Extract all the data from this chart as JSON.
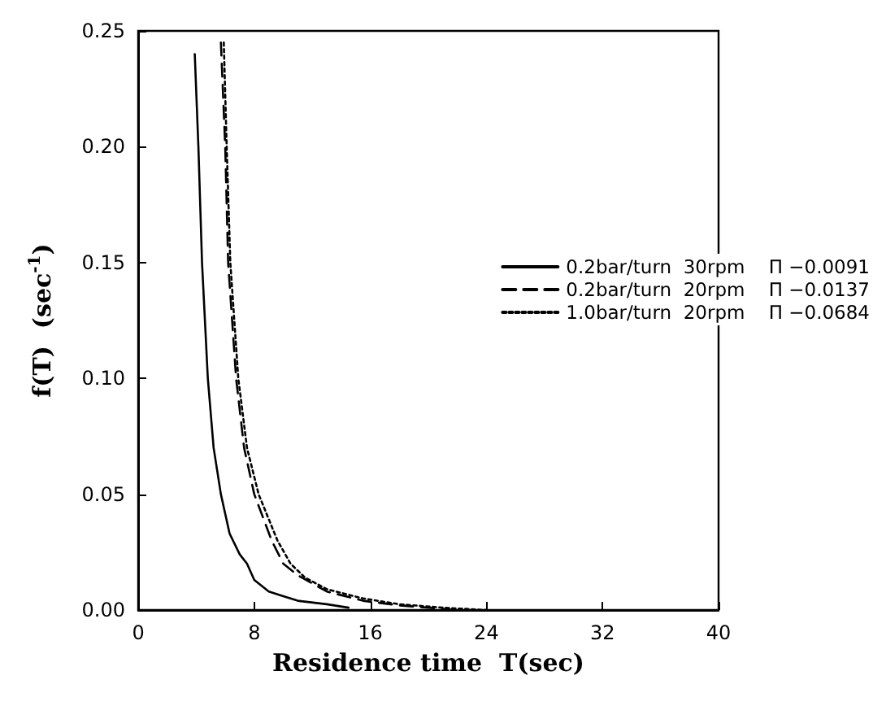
{
  "chart_data": {
    "type": "line",
    "xlabel": "Residence time  T(sec)",
    "ylabel": "f(T)  (sec$^{-1}$)",
    "xlim": [
      0,
      40
    ],
    "xticks": [
      0,
      8,
      16,
      24,
      32,
      40
    ],
    "ylim": [
      0,
      0.25
    ],
    "yticks": [
      {
        "value": 0,
        "label": "0.00"
      },
      0.05,
      {
        "value": 0.1,
        "label": "0.10"
      },
      0.15,
      {
        "value": 0.2,
        "label": "0.20"
      },
      0.25
    ],
    "grid": false,
    "legend": "right",
    "marker": "none",
    "series": [
      {
        "name": "0.2bar/turn  30rpm    Π −0.0091",
        "color": "#000000",
        "line_style": "solid",
        "x": [
          3.9,
          4.15,
          4.4,
          4.8,
          5.2,
          5.7,
          6.3,
          7.0,
          7.5,
          8.0,
          9.0,
          10.0,
          11.0,
          13.0,
          14.5
        ],
        "values": [
          0.24,
          0.2,
          0.15,
          0.1,
          0.07,
          0.05,
          0.033,
          0.024,
          0.02,
          0.013,
          0.008,
          0.006,
          0.004,
          0.0025,
          0.001
        ]
      },
      {
        "name": "0.2bar/turn  20rpm    Π −0.0137",
        "color": "#000000",
        "line_style": "dashed",
        "x": [
          5.7,
          6.0,
          6.2,
          6.75,
          7.3,
          8.0,
          9.2,
          10.0,
          11.0,
          13.0,
          15.5,
          18.0,
          20.0,
          22.0
        ],
        "values": [
          0.245,
          0.2,
          0.15,
          0.1,
          0.07,
          0.05,
          0.03,
          0.02,
          0.015,
          0.008,
          0.004,
          0.002,
          0.001,
          0.0
        ]
      },
      {
        "name": "1.0bar/turn  20rpm    Π −0.0684",
        "color": "#000000",
        "line_style": "dotted",
        "x": [
          5.9,
          6.1,
          6.35,
          6.9,
          7.5,
          8.3,
          9.6,
          10.5,
          11.5,
          13.0,
          15.5,
          18.0,
          21.0,
          24.0
        ],
        "values": [
          0.245,
          0.2,
          0.15,
          0.1,
          0.07,
          0.05,
          0.03,
          0.02,
          0.014,
          0.009,
          0.005,
          0.0025,
          0.001,
          0.0
        ]
      }
    ]
  }
}
